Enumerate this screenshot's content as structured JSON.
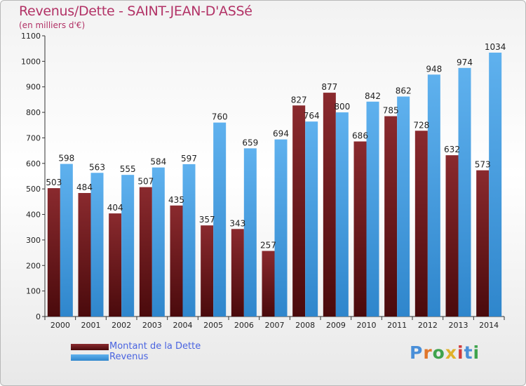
{
  "title": "Revenus/Dette - SAINT-JEAN-D'ASSé",
  "subtitle": "(en milliers d'€)",
  "brand": "Proxiti",
  "colors": {
    "dette": "#6b1418",
    "revenus": "#4a9fe0",
    "title": "#b23266",
    "legend_text": "#4a64e0"
  },
  "legend": [
    {
      "label": "Montant de la Dette",
      "color": "#6b1418"
    },
    {
      "label": "Revenus",
      "color": "#4a9fe0"
    }
  ],
  "chart_data": {
    "type": "bar",
    "title": "Revenus/Dette - SAINT-JEAN-D'ASSé",
    "subtitle": "(en milliers d'€)",
    "categories": [
      "2000",
      "2001",
      "2002",
      "2003",
      "2004",
      "2005",
      "2006",
      "2007",
      "2008",
      "2009",
      "2010",
      "2011",
      "2012",
      "2013",
      "2014"
    ],
    "series": [
      {
        "name": "Montant de la Dette",
        "values": [
          503,
          484,
          404,
          507,
          435,
          357,
          343,
          257,
          827,
          877,
          686,
          785,
          728,
          632,
          573
        ]
      },
      {
        "name": "Revenus",
        "values": [
          598,
          563,
          555,
          584,
          597,
          760,
          659,
          694,
          764,
          800,
          842,
          862,
          948,
          974,
          1034
        ]
      }
    ],
    "yticks": [
      0,
      100,
      200,
      300,
      400,
      500,
      600,
      700,
      800,
      900,
      1000,
      1100
    ],
    "ylim": [
      0,
      1100
    ],
    "grid": false,
    "legend_position": "bottom-left"
  }
}
